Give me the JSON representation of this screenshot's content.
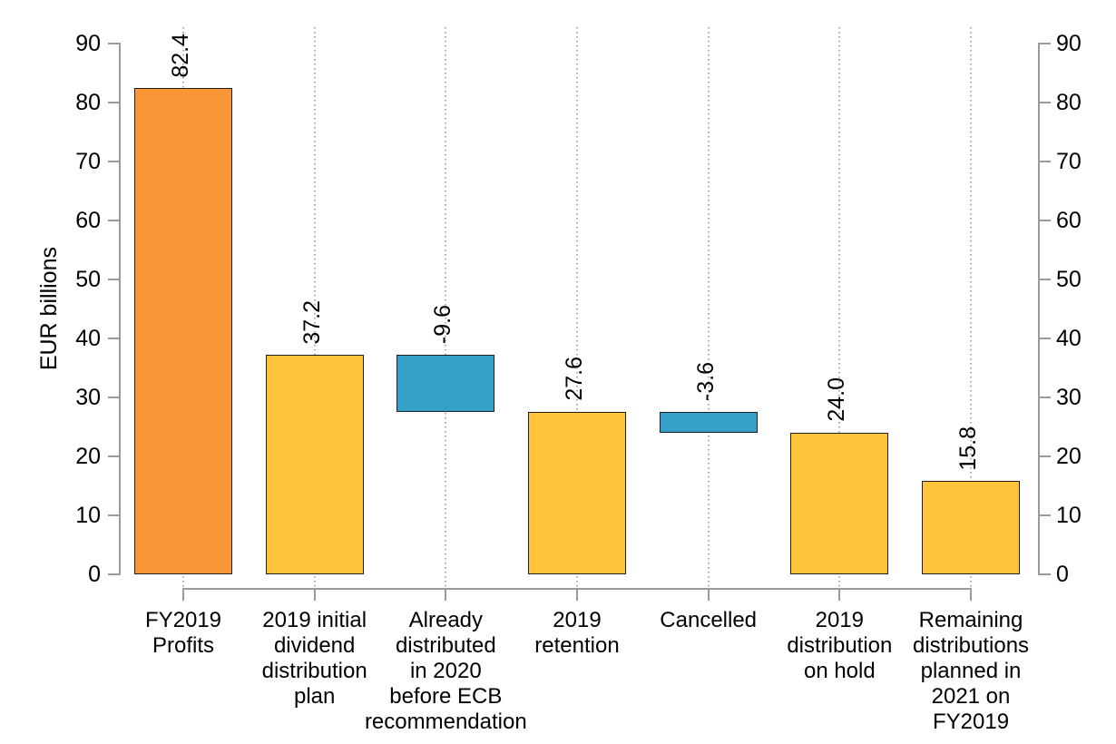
{
  "chart_data": {
    "type": "bar",
    "variant": "waterfall",
    "title": "",
    "xlabel": "",
    "ylabel": "EUR billions",
    "ylim": [
      0,
      90
    ],
    "yticks": [
      0,
      10,
      20,
      30,
      40,
      50,
      60,
      70,
      80,
      90
    ],
    "grid": "vertical-dotted",
    "axes": {
      "left": true,
      "right": true,
      "bottom_category_axis": true
    },
    "legend": "none",
    "bars": [
      {
        "category": "FY2019 Profits",
        "category_lines": [
          "FY2019",
          "Profits"
        ],
        "value": 82.4,
        "label": "82.4",
        "base": 0,
        "color_key": "orange"
      },
      {
        "category": "2019 initial dividend distribution plan",
        "category_lines": [
          "2019 initial",
          "dividend",
          "distribution",
          "plan"
        ],
        "value": 37.2,
        "label": "37.2",
        "base": 0,
        "color_key": "yellow"
      },
      {
        "category": "Already distributed in 2020 before ECB recommendation",
        "category_lines": [
          "Already",
          "distributed",
          "in 2020",
          "before ECB",
          "recommendation"
        ],
        "value": -9.6,
        "label": "-9.6",
        "base": 37.2,
        "color_key": "blue"
      },
      {
        "category": "2019 retention",
        "category_lines": [
          "2019",
          "retention"
        ],
        "value": 27.6,
        "label": "27.6",
        "base": 0,
        "color_key": "yellow"
      },
      {
        "category": "Cancelled",
        "category_lines": [
          "Cancelled"
        ],
        "value": -3.6,
        "label": "-3.6",
        "base": 27.6,
        "color_key": "blue"
      },
      {
        "category": "2019 distribution on hold",
        "category_lines": [
          "2019",
          "distribution",
          "on hold"
        ],
        "value": 24.0,
        "label": "24.0",
        "base": 0,
        "color_key": "yellow"
      },
      {
        "category": "Remaining distributions planned in 2021 on FY2019",
        "category_lines": [
          "Remaining",
          "distributions",
          "planned in",
          "2021 on",
          "FY2019"
        ],
        "value": 15.8,
        "label": "15.8",
        "base": 0,
        "color_key": "yellow"
      }
    ],
    "colors": {
      "orange": "#FB9637",
      "yellow": "#FDC43C",
      "blue": "#35A1C9",
      "bar_border": "#1F1F1F",
      "axis": "#9A9A9A",
      "grid": "#ABABAB",
      "text": "#000000"
    }
  }
}
